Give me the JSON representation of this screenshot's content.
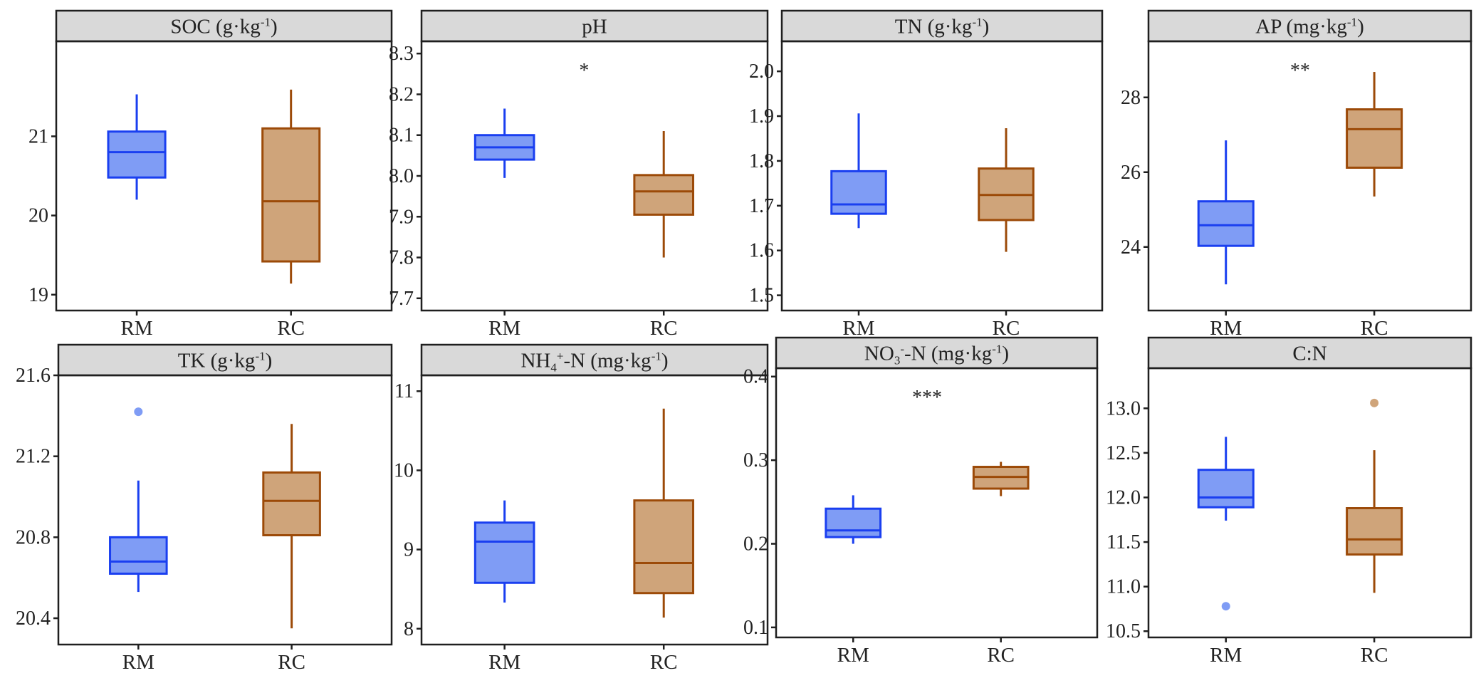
{
  "chart_data": [
    {
      "type": "boxplot",
      "title": "SOC (g·kg-1)",
      "title_parts": {
        "pre": "SOC (g·kg",
        "sup": "-1",
        "post": ")"
      },
      "annotation": "",
      "categories": [
        "RM",
        "RC"
      ],
      "y_ticks": [
        19,
        20,
        21
      ],
      "ylim": [
        18.8,
        22.2
      ],
      "boxes": [
        {
          "group": "RM",
          "min": 20.2,
          "q1": 20.48,
          "median": 20.8,
          "q3": 21.06,
          "max": 21.53,
          "outliers": []
        },
        {
          "group": "RC",
          "min": 19.14,
          "q1": 19.42,
          "median": 20.18,
          "q3": 21.1,
          "max": 21.59,
          "outliers": []
        }
      ]
    },
    {
      "type": "boxplot",
      "title": "pH",
      "title_parts": {
        "pre": "pH",
        "sup": "",
        "post": ""
      },
      "annotation": "*",
      "categories": [
        "RM",
        "RC"
      ],
      "y_ticks": [
        7.7,
        7.8,
        7.9,
        8.0,
        8.1,
        8.2,
        8.3
      ],
      "y_ticks_text": [
        "7.7",
        "7.8",
        "7.9",
        "8.0",
        "8.1",
        "8.2",
        "8.3"
      ],
      "ylim": [
        7.67,
        8.33
      ],
      "boxes": [
        {
          "group": "RM",
          "min": 7.995,
          "q1": 8.04,
          "median": 8.07,
          "q3": 8.1,
          "max": 8.165,
          "outliers": []
        },
        {
          "group": "RC",
          "min": 7.8,
          "q1": 7.905,
          "median": 7.962,
          "q3": 8.002,
          "max": 8.11,
          "outliers": []
        }
      ]
    },
    {
      "type": "boxplot",
      "title": "TN (g·kg-1)",
      "title_parts": {
        "pre": "TN (g·kg",
        "sup": "-1",
        "post": ")"
      },
      "annotation": "",
      "categories": [
        "RM",
        "RC"
      ],
      "y_ticks": [
        1.5,
        1.6,
        1.7,
        1.8,
        1.9,
        2.0
      ],
      "y_ticks_text": [
        "1.5",
        "1.6",
        "1.7",
        "1.8",
        "1.9",
        "2.0"
      ],
      "ylim": [
        1.466,
        2.067
      ],
      "boxes": [
        {
          "group": "RM",
          "min": 1.65,
          "q1": 1.682,
          "median": 1.703,
          "q3": 1.777,
          "max": 1.906,
          "outliers": []
        },
        {
          "group": "RC",
          "min": 1.597,
          "q1": 1.668,
          "median": 1.724,
          "q3": 1.783,
          "max": 1.873,
          "outliers": []
        }
      ]
    },
    {
      "type": "boxplot",
      "title": "AP (mg·kg-1)",
      "title_parts": {
        "pre": "AP (mg·kg",
        "sup": "-1",
        "post": ")"
      },
      "annotation": "**",
      "categories": [
        "RM",
        "RC"
      ],
      "y_ticks": [
        24,
        26,
        28
      ],
      "ylim": [
        22.3,
        29.5
      ],
      "boxes": [
        {
          "group": "RM",
          "min": 23.0,
          "q1": 24.03,
          "median": 24.58,
          "q3": 25.22,
          "max": 26.85,
          "outliers": []
        },
        {
          "group": "RC",
          "min": 25.35,
          "q1": 26.12,
          "median": 27.15,
          "q3": 27.68,
          "max": 28.68,
          "outliers": []
        }
      ]
    },
    {
      "type": "boxplot",
      "title": "TK (g·kg-1)",
      "title_parts": {
        "pre": "TK (g·kg",
        "sup": "-1",
        "post": ")"
      },
      "annotation": "",
      "categories": [
        "RM",
        "RC"
      ],
      "y_ticks": [
        20.4,
        20.8,
        21.2,
        21.6
      ],
      "y_ticks_text": [
        "20.4",
        "20.8",
        "21.2",
        "21.6"
      ],
      "ylim": [
        20.27,
        21.6
      ],
      "boxes": [
        {
          "group": "RM",
          "min": 20.53,
          "q1": 20.62,
          "median": 20.68,
          "q3": 20.8,
          "max": 21.08,
          "outliers": [
            21.42
          ]
        },
        {
          "group": "RC",
          "min": 20.35,
          "q1": 20.81,
          "median": 20.98,
          "q3": 21.12,
          "max": 21.36,
          "outliers": []
        }
      ]
    },
    {
      "type": "boxplot",
      "title": "NH4+-N (mg·kg-1)",
      "title_parts": {
        "pre": "NH",
        "sub": "4",
        "sup0": "+",
        "mid": "-N (mg·kg",
        "sup": "-1",
        "post": ")"
      },
      "annotation": "",
      "categories": [
        "RM",
        "RC"
      ],
      "y_ticks": [
        8,
        9,
        10,
        11
      ],
      "ylim": [
        7.8,
        11.2
      ],
      "boxes": [
        {
          "group": "RM",
          "min": 8.33,
          "q1": 8.58,
          "median": 9.1,
          "q3": 9.34,
          "max": 9.62,
          "outliers": []
        },
        {
          "group": "RC",
          "min": 8.14,
          "q1": 8.45,
          "median": 8.83,
          "q3": 9.62,
          "max": 10.78,
          "outliers": []
        }
      ]
    },
    {
      "type": "boxplot",
      "title": "NO3--N (mg·kg-1)",
      "title_parts": {
        "pre": "NO",
        "sub": "3",
        "sup0": "-",
        "mid": "-N (mg·kg",
        "sup": "-1",
        "post": ")"
      },
      "annotation": "***",
      "categories": [
        "RM",
        "RC"
      ],
      "y_ticks": [
        0.1,
        0.2,
        0.3,
        0.4
      ],
      "y_ticks_text": [
        "0.1",
        "0.2",
        "0.3",
        "0.4"
      ],
      "ylim": [
        0.088,
        0.41
      ],
      "boxes": [
        {
          "group": "RM",
          "min": 0.2,
          "q1": 0.208,
          "median": 0.216,
          "q3": 0.242,
          "max": 0.258,
          "outliers": []
        },
        {
          "group": "RC",
          "min": 0.257,
          "q1": 0.266,
          "median": 0.28,
          "q3": 0.292,
          "max": 0.298,
          "outliers": []
        }
      ]
    },
    {
      "type": "boxplot",
      "title": "C:N",
      "title_parts": {
        "pre": "C:N",
        "sup": "",
        "post": ""
      },
      "annotation": "",
      "categories": [
        "RM",
        "RC"
      ],
      "y_ticks": [
        10.5,
        11.0,
        11.5,
        12.0,
        12.5,
        13.0
      ],
      "y_ticks_text": [
        "10.5",
        "11.0",
        "11.5",
        "12.0",
        "12.5",
        "13.0"
      ],
      "ylim": [
        10.43,
        13.45
      ],
      "boxes": [
        {
          "group": "RM",
          "min": 11.74,
          "q1": 11.89,
          "median": 12.0,
          "q3": 12.31,
          "max": 12.68,
          "outliers": [
            10.78
          ]
        },
        {
          "group": "RC",
          "min": 10.93,
          "q1": 11.36,
          "median": 11.53,
          "q3": 11.88,
          "max": 12.53,
          "outliers": [
            13.06
          ]
        }
      ]
    }
  ],
  "colors": {
    "RM_fill": "#7f9cf5",
    "RM_line": "#1a3ff0",
    "RC_fill": "#cfa47a",
    "RC_line": "#9c4a08",
    "strip_bg": "#d9d9d9",
    "frame": "#1f1f1f"
  },
  "legend": "none"
}
